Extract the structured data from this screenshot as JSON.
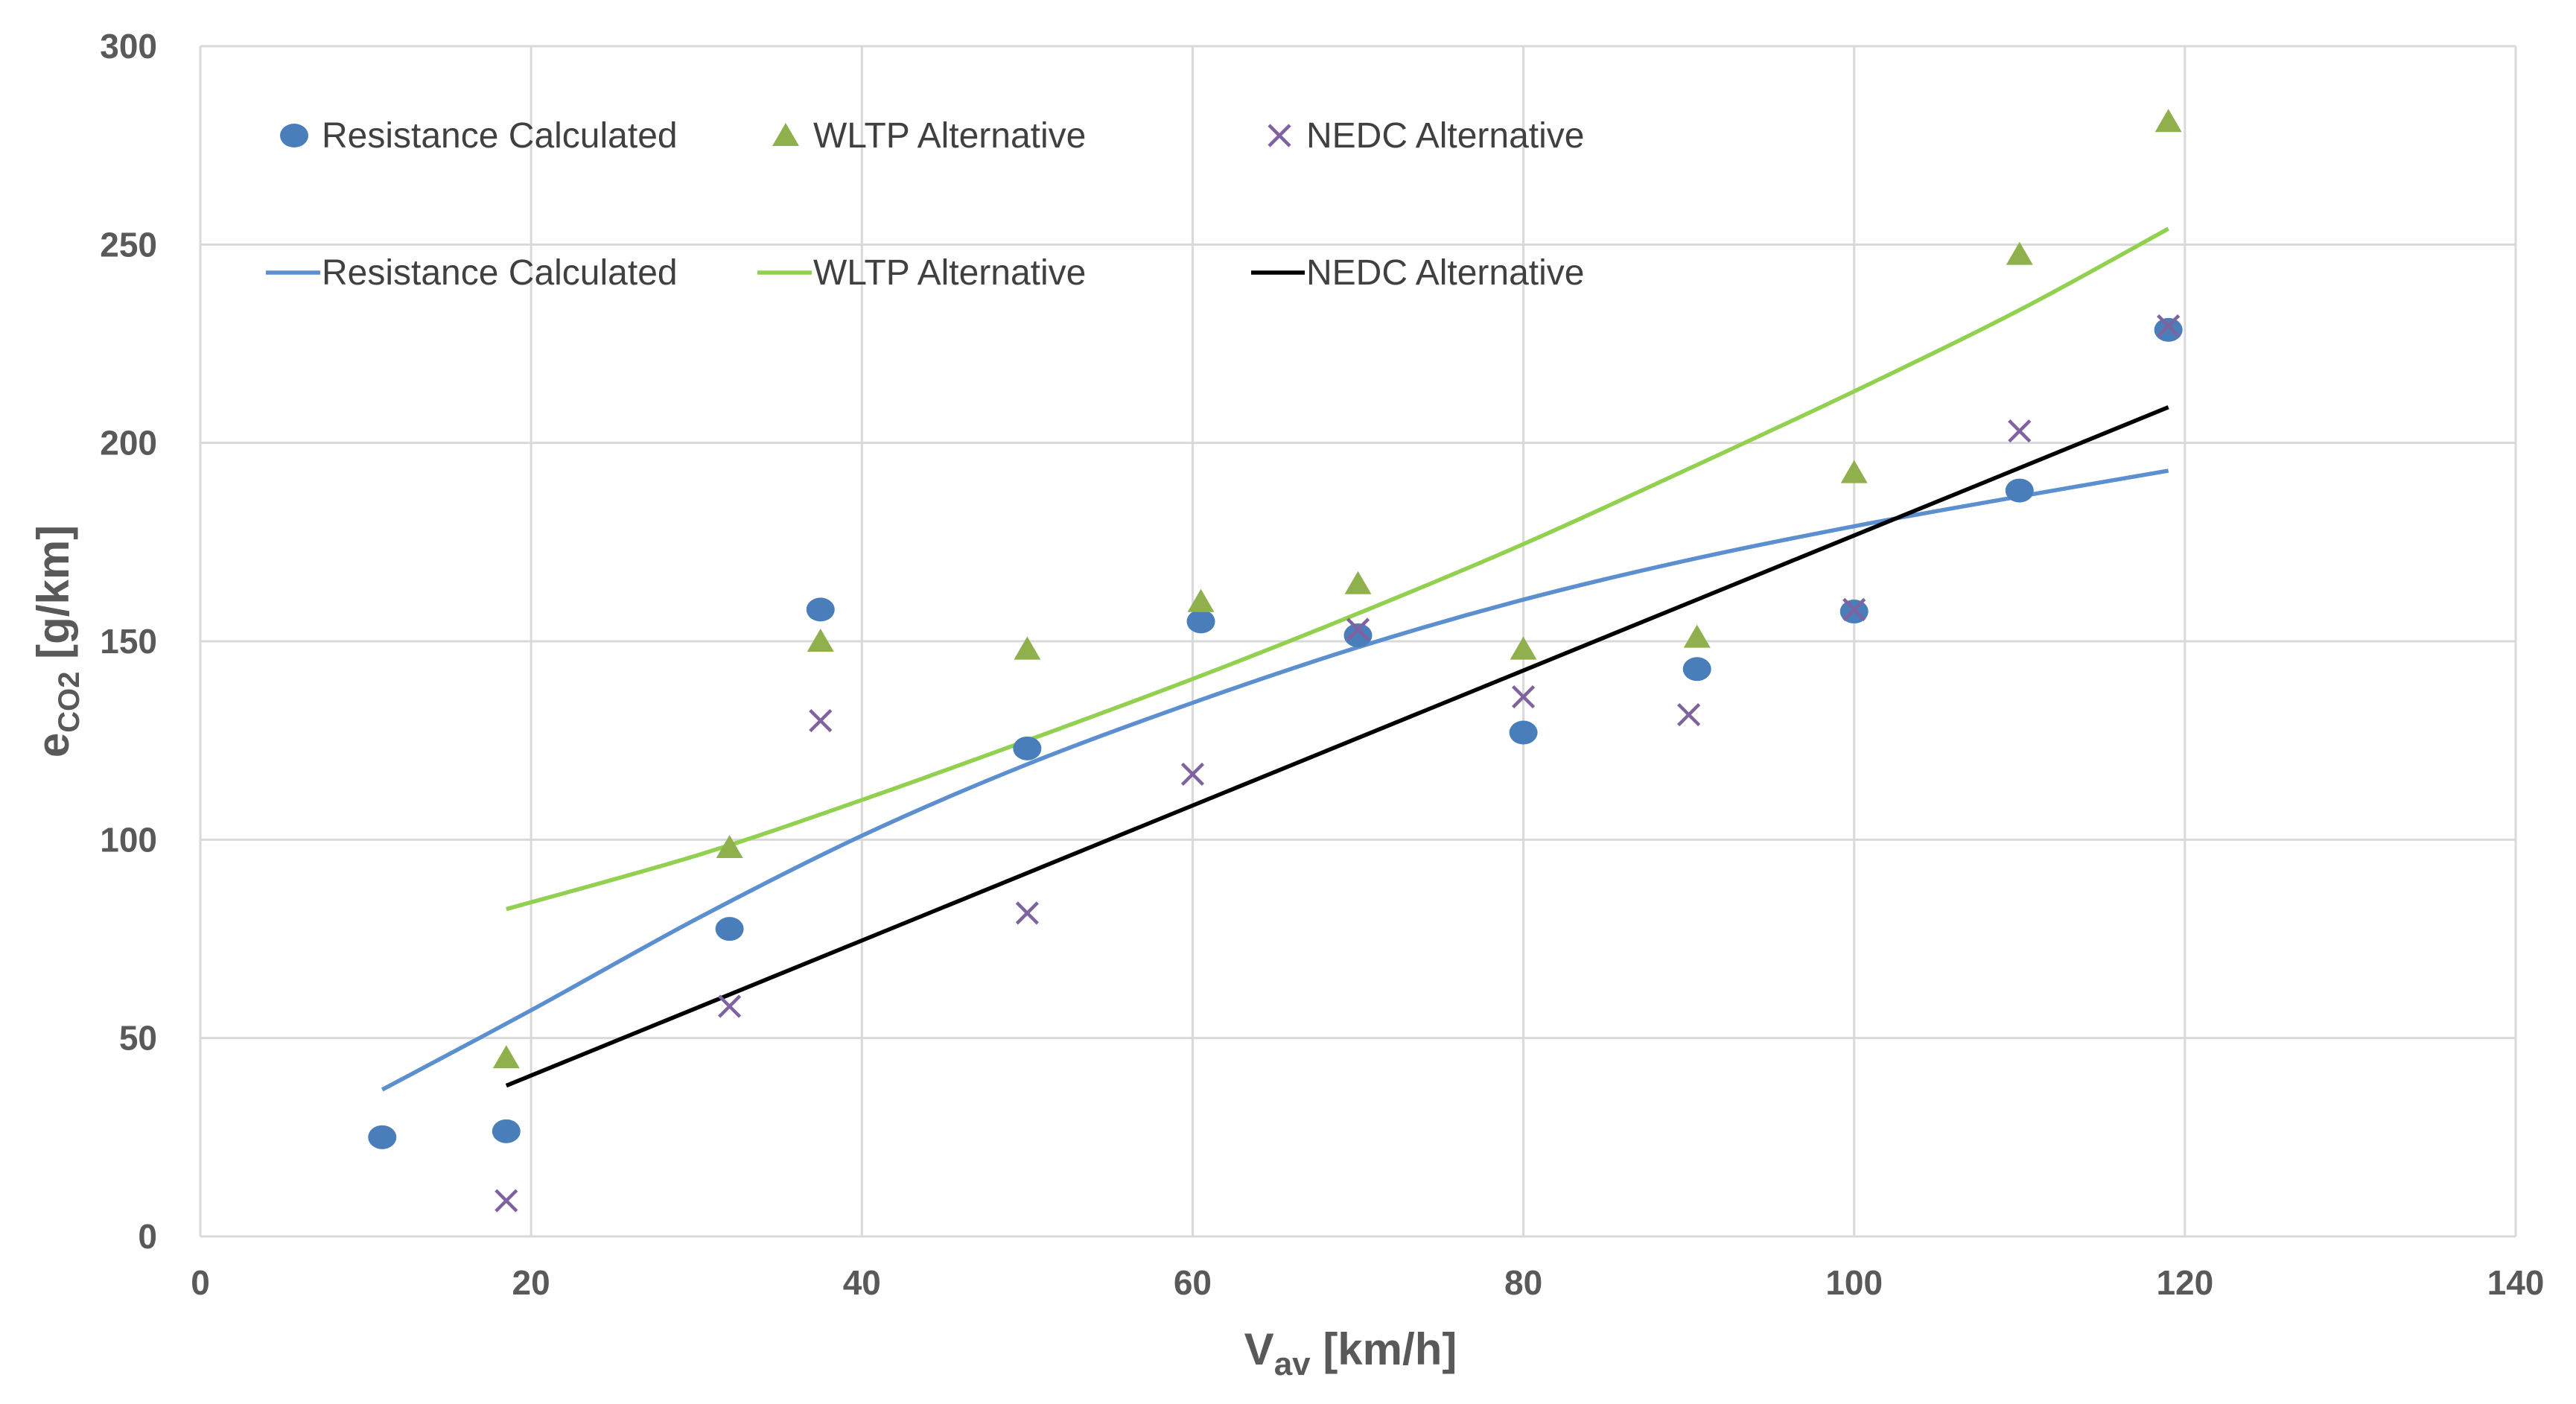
{
  "chart_data": {
    "type": "scatter",
    "title": "",
    "xlabel": {
      "main": "V",
      "sub": "av",
      "rest": " [km/h]"
    },
    "ylabel": {
      "main": "e",
      "sub": "CO2",
      "rest": " [g/km]"
    },
    "xlim": [
      0,
      140
    ],
    "ylim": [
      0,
      300
    ],
    "x_ticks": [
      0,
      20,
      40,
      60,
      80,
      100,
      120,
      140
    ],
    "y_ticks": [
      0,
      50,
      100,
      150,
      200,
      250,
      300
    ],
    "grid": true,
    "legend_placement": "top-left, inside plot",
    "series": [
      {
        "name": "Resistance Calculated",
        "kind": "points",
        "marker": "circle",
        "color": "#4a7ebb",
        "points": [
          [
            11,
            25
          ],
          [
            18.5,
            26.5
          ],
          [
            32,
            77.5
          ],
          [
            37.5,
            158
          ],
          [
            50,
            123
          ],
          [
            60.5,
            155
          ],
          [
            70,
            151.5
          ],
          [
            80,
            127
          ],
          [
            90.5,
            143
          ],
          [
            100,
            157.5
          ],
          [
            110,
            188
          ],
          [
            119,
            228.5
          ]
        ]
      },
      {
        "name": "WLTP Alternative",
        "kind": "points",
        "marker": "triangle",
        "color": "#8fb04c",
        "points": [
          [
            18.5,
            45
          ],
          [
            32,
            98
          ],
          [
            37.5,
            150
          ],
          [
            50,
            148
          ],
          [
            60.5,
            160
          ],
          [
            70,
            164.5
          ],
          [
            80,
            148
          ],
          [
            90.5,
            151
          ],
          [
            100,
            192.5
          ],
          [
            110,
            247.5
          ],
          [
            119,
            281
          ]
        ]
      },
      {
        "name": "NEDC Alternative",
        "kind": "points",
        "marker": "x",
        "color": "#7f63a0",
        "points": [
          [
            18.5,
            9
          ],
          [
            32,
            58
          ],
          [
            37.5,
            130
          ],
          [
            50,
            81.5
          ],
          [
            60,
            116.5
          ],
          [
            70,
            153
          ],
          [
            80,
            136
          ],
          [
            90,
            131.5
          ],
          [
            100,
            158
          ],
          [
            110,
            203
          ],
          [
            119,
            229.5
          ]
        ]
      },
      {
        "name": "Resistance Calculated",
        "kind": "line",
        "color": "#5b8fcf",
        "points": [
          [
            11,
            37
          ],
          [
            20,
            57
          ],
          [
            30,
            80
          ],
          [
            40,
            101
          ],
          [
            50,
            119
          ],
          [
            60,
            134.5
          ],
          [
            70,
            148.5
          ],
          [
            80,
            160.5
          ],
          [
            90,
            170.5
          ],
          [
            100,
            179
          ],
          [
            110,
            186.5
          ],
          [
            119,
            193
          ]
        ]
      },
      {
        "name": "WLTP Alternative",
        "kind": "line",
        "color": "#92d050",
        "points": [
          [
            18.5,
            82.5
          ],
          [
            30,
            96
          ],
          [
            40,
            110
          ],
          [
            50,
            125
          ],
          [
            60,
            140.5
          ],
          [
            70,
            157
          ],
          [
            80,
            174.5
          ],
          [
            90,
            193.5
          ],
          [
            100,
            213
          ],
          [
            110,
            233.5
          ],
          [
            119,
            254
          ]
        ]
      },
      {
        "name": "NEDC Alternative",
        "kind": "line",
        "color": "#000000",
        "points": [
          [
            18.5,
            38
          ],
          [
            119,
            209
          ]
        ]
      }
    ]
  }
}
